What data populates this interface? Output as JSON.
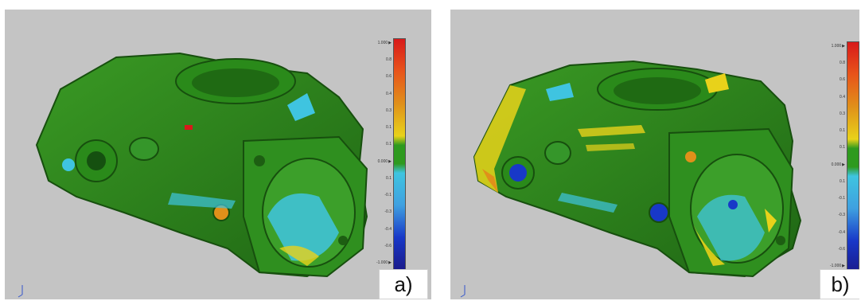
{
  "panels": [
    {
      "id": "a",
      "label": "a)",
      "scale_ticks": [
        {
          "text": "1.000",
          "key": true
        },
        {
          "text": "0.8",
          "key": false
        },
        {
          "text": "0.6",
          "key": false
        },
        {
          "text": "0.4",
          "key": false
        },
        {
          "text": "0.3",
          "key": false
        },
        {
          "text": "0.1",
          "key": false
        },
        {
          "text": "0.1",
          "key": false
        },
        {
          "text": "0.000",
          "key": true
        },
        {
          "text": "0.1",
          "key": false
        },
        {
          "text": "-0.1",
          "key": false
        },
        {
          "text": "-0.3",
          "key": false
        },
        {
          "text": "-0.4",
          "key": false
        },
        {
          "text": "-0.6",
          "key": false
        },
        {
          "text": "-1.000",
          "key": true
        }
      ]
    },
    {
      "id": "b",
      "label": "b)",
      "scale_ticks": [
        {
          "text": "1.000",
          "key": true
        },
        {
          "text": "0.8",
          "key": false
        },
        {
          "text": "0.6",
          "key": false
        },
        {
          "text": "0.4",
          "key": false
        },
        {
          "text": "0.3",
          "key": false
        },
        {
          "text": "0.1",
          "key": false
        },
        {
          "text": "0.1",
          "key": false
        },
        {
          "text": "0.000",
          "key": true
        },
        {
          "text": "0.1",
          "key": false
        },
        {
          "text": "-0.1",
          "key": false
        },
        {
          "text": "-0.3",
          "key": false
        },
        {
          "text": "-0.4",
          "key": false
        },
        {
          "text": "-0.6",
          "key": false
        },
        {
          "text": "-1.000",
          "key": true
        }
      ]
    }
  ],
  "colors": {
    "background": "#c4c4c4",
    "part_green": "#2e8b1e",
    "part_dark_green": "#1d5e12",
    "deviation_yellow": "#e8d21a",
    "deviation_orange": "#e0901a",
    "deviation_cyan": "#3fc4e0",
    "deviation_blue": "#1838c8",
    "scale_red": "#d81a1a",
    "scale_navy": "#1a1a8a"
  }
}
